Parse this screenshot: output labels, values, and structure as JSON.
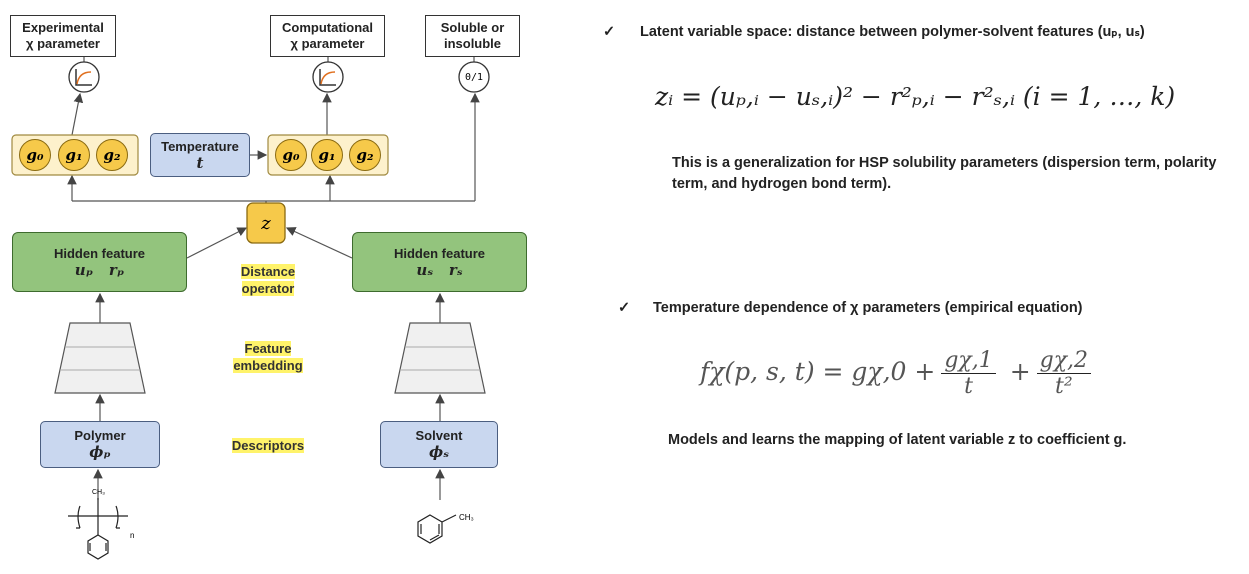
{
  "diagram": {
    "outputs": [
      {
        "lines": [
          "Experimental",
          "χ parameter"
        ]
      },
      {
        "lines": [
          "Computational",
          "χ parameter"
        ]
      },
      {
        "lines": [
          "Soluble or",
          "insoluble"
        ]
      }
    ],
    "binary_icon": "0/1",
    "coefficients_left": [
      "g₀",
      "g₁",
      "g₂"
    ],
    "coefficients_right": [
      "g₀",
      "g₁",
      "g₂"
    ],
    "temperature": {
      "label": "Temperature",
      "symbol": "t"
    },
    "latent": "z",
    "hidden_left": {
      "label": "Hidden feature",
      "symbols": "uₚ   rₚ"
    },
    "hidden_right": {
      "label": "Hidden feature",
      "symbols": "uₛ   rₛ"
    },
    "stage_labels": [
      {
        "lines": [
          "Distance",
          "operator"
        ]
      },
      {
        "lines": [
          "Feature",
          "embedding"
        ]
      },
      {
        "lines": [
          "Descriptors"
        ]
      }
    ],
    "polymer": {
      "label": "Polymer",
      "symbol": "ϕₚ"
    },
    "solvent": {
      "label": "Solvent",
      "symbol": "ϕₛ"
    },
    "polymer_structure": {
      "group": "CH₃",
      "repeat": "n"
    },
    "solvent_structure": {
      "group": "CH₃"
    }
  },
  "notes": [
    {
      "check": "✓",
      "heading": "Latent variable space: distance between polymer-solvent features (uₚ, uₛ)",
      "equation": "zᵢ = (uₚ,ᵢ − uₛ,ᵢ)² − r²ₚ,ᵢ − r²ₛ,ᵢ  (i = 1, …, k)",
      "text": "This is a generalization for HSP solubility parameters (dispersion term, polarity term, and hydrogen bond term)."
    },
    {
      "check": "✓",
      "heading": "Temperature dependence of χ parameters (empirical equation)",
      "equation": {
        "lhs": "fχ(p, s, t) = gχ,0",
        "terms": [
          {
            "op": "+",
            "num": "gχ,1",
            "den": "t"
          },
          {
            "op": "+",
            "num": "gχ,2",
            "den": "t²"
          }
        ]
      },
      "text": "Models and learns the mapping of latent variable z to coefficient g."
    }
  ]
}
